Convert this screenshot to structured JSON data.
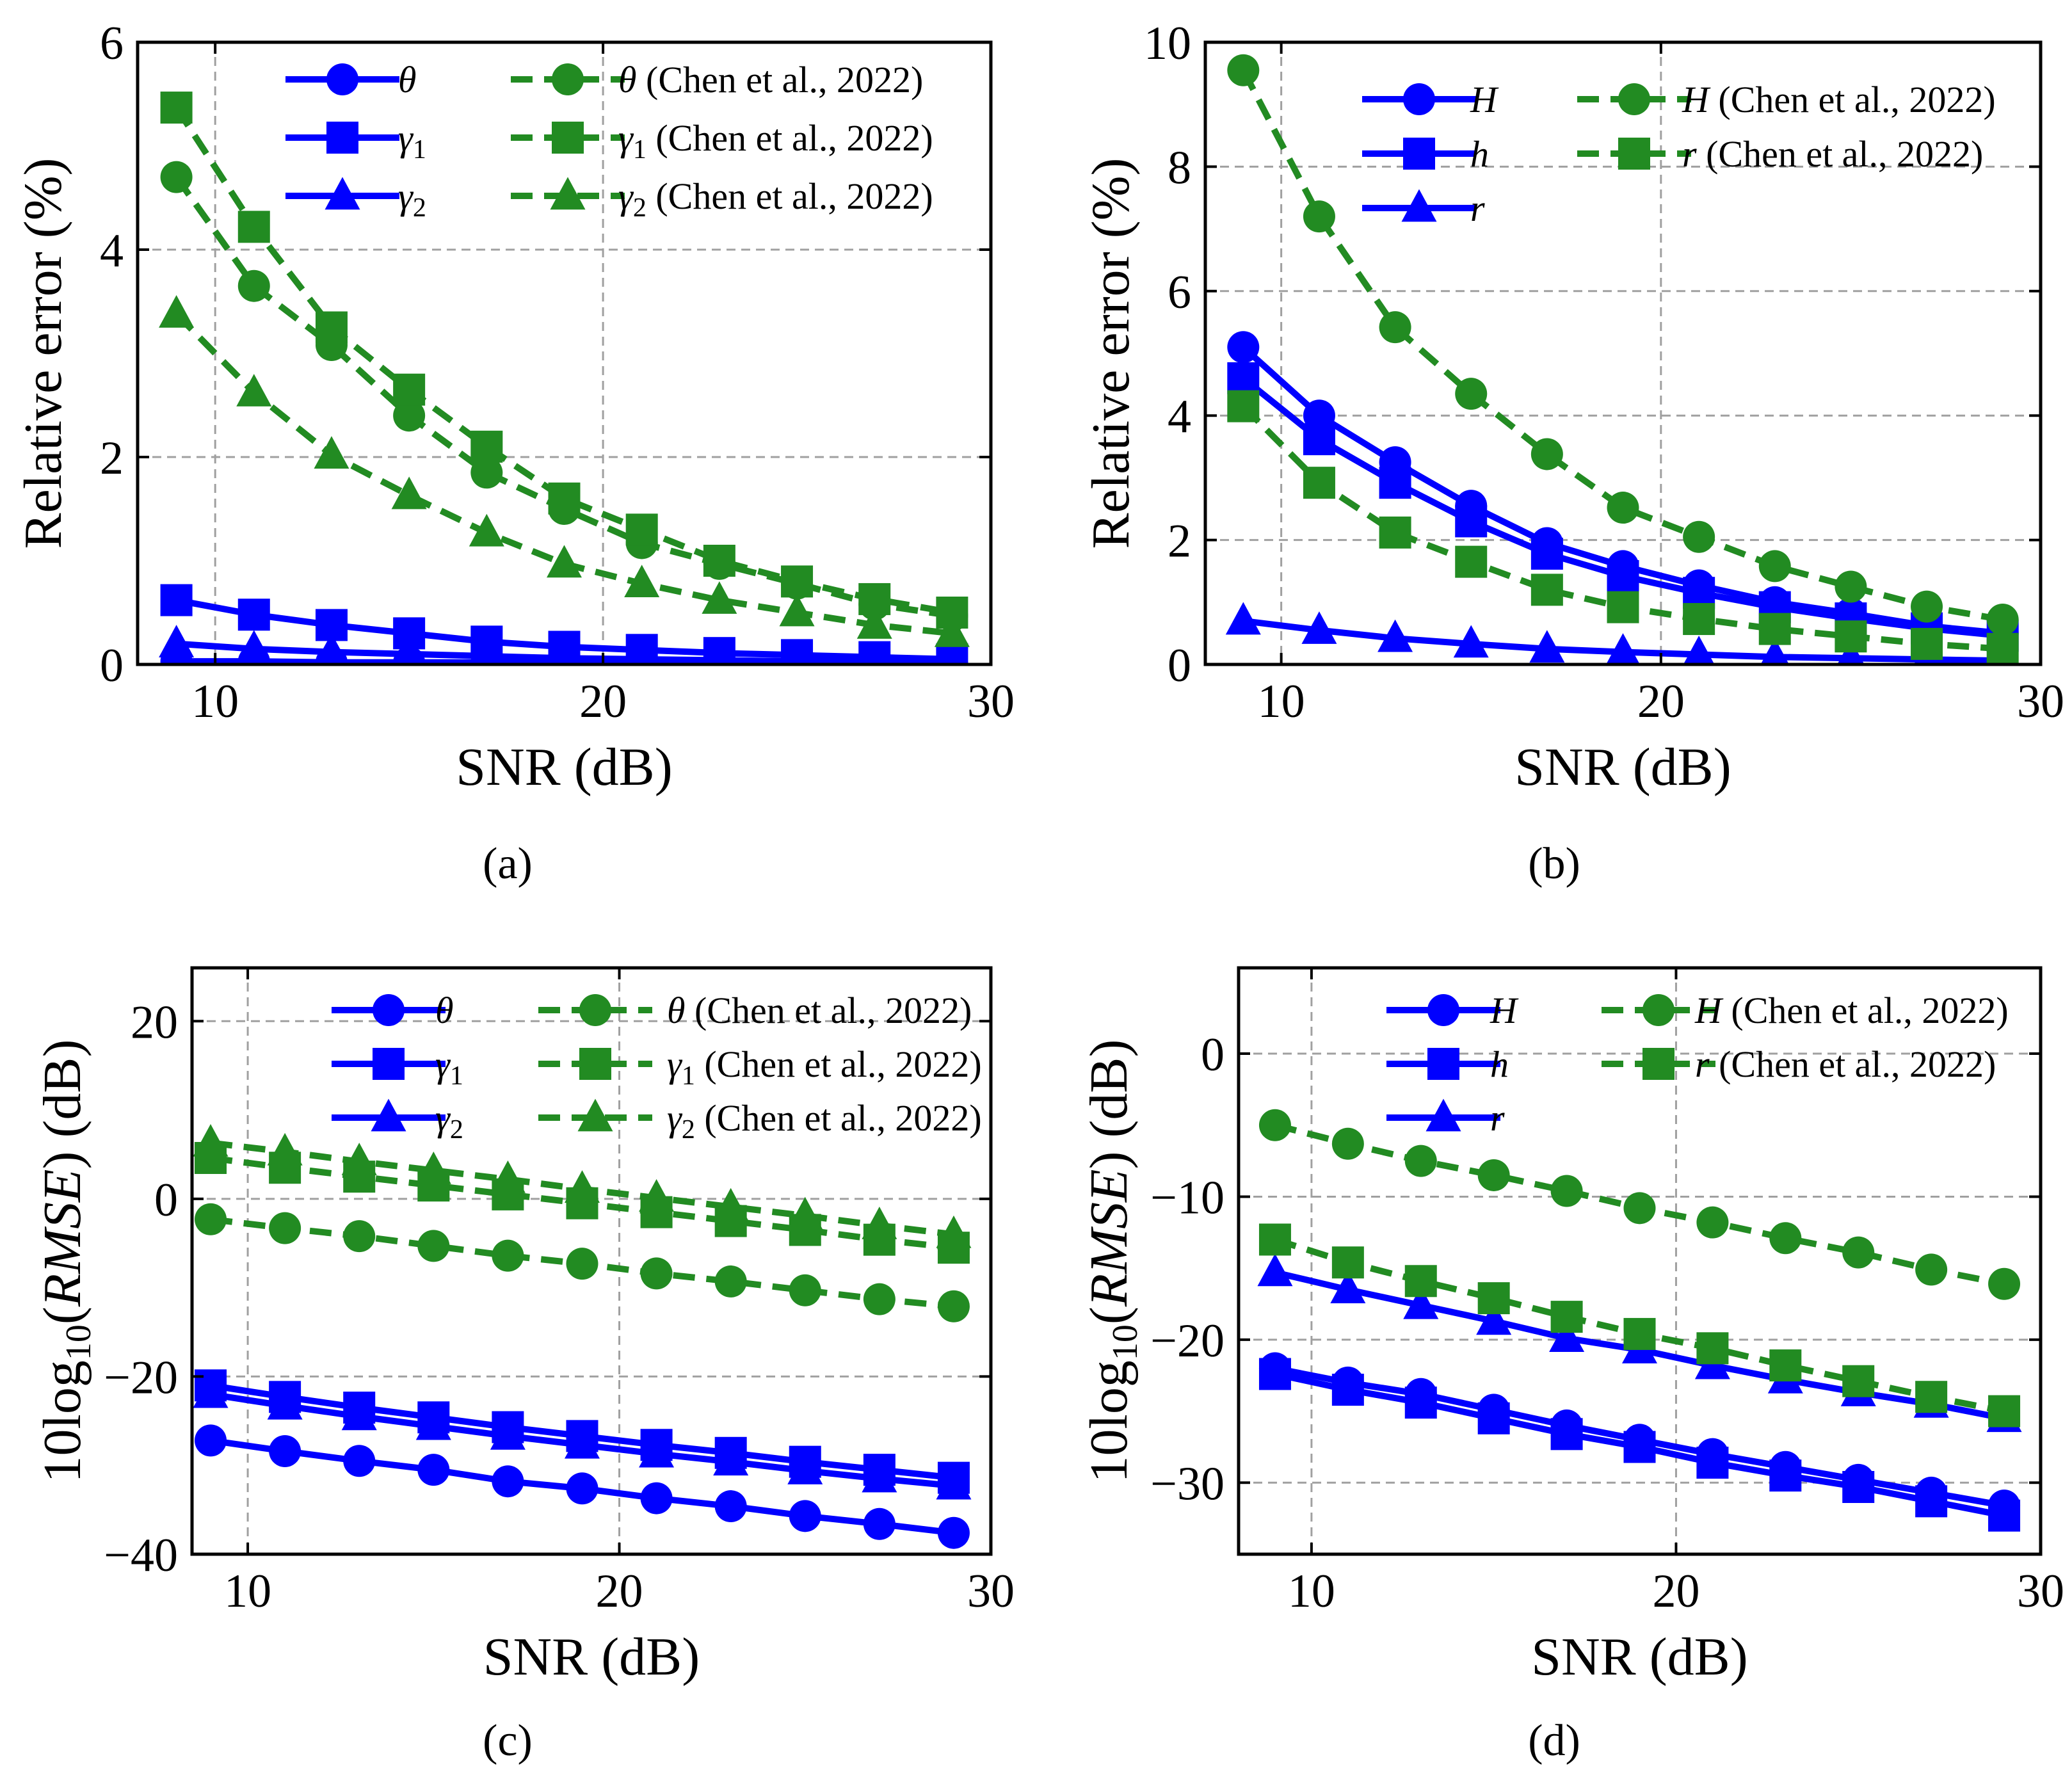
{
  "colors": {
    "ours": "#0000ff",
    "chen": "#228b22"
  },
  "chart_data": [
    {
      "type": "line",
      "caption": "(a)",
      "xlabel": "SNR (dB)",
      "ylabel": "Relative error (%)",
      "xlim": [
        8,
        30
      ],
      "ylim": [
        0,
        6
      ],
      "xticks": [
        10,
        20,
        30
      ],
      "xtick_labels": [
        "10",
        "20",
        "30"
      ],
      "yticks": [
        0,
        2,
        4,
        6
      ],
      "ytick_labels": [
        "0",
        "2",
        "4",
        "6"
      ],
      "legend_position": "upper-right",
      "x": [
        9,
        11,
        13,
        15,
        17,
        19,
        21,
        23,
        25,
        27,
        29
      ],
      "series": [
        {
          "name": "θ",
          "label_sym": "θ",
          "label_sub": "",
          "label_rest": "",
          "color": "ours",
          "marker": "circle",
          "dash": false,
          "values": [
            0.03,
            0.03,
            0.02,
            0.02,
            0.02,
            0.01,
            0.01,
            0.01,
            0.01,
            0.01,
            0.01
          ]
        },
        {
          "name": "γ1",
          "label_sym": "γ",
          "label_sub": "1",
          "label_rest": "",
          "color": "ours",
          "marker": "square",
          "dash": false,
          "values": [
            0.62,
            0.48,
            0.38,
            0.3,
            0.22,
            0.17,
            0.14,
            0.11,
            0.09,
            0.07,
            0.05
          ]
        },
        {
          "name": "γ2",
          "label_sym": "γ",
          "label_sub": "2",
          "label_rest": "",
          "color": "ours",
          "marker": "triangle",
          "dash": false,
          "values": [
            0.2,
            0.15,
            0.12,
            0.1,
            0.08,
            0.06,
            0.05,
            0.04,
            0.03,
            0.03,
            0.02
          ]
        },
        {
          "name": "θ (Chen et al., 2022)",
          "label_sym": "θ",
          "label_sub": "",
          "label_rest": " (Chen et al., 2022)",
          "color": "chen",
          "marker": "circle",
          "dash": true,
          "values": [
            4.7,
            3.65,
            3.08,
            2.4,
            1.85,
            1.5,
            1.17,
            0.97,
            0.78,
            0.58,
            0.47
          ]
        },
        {
          "name": "γ1 (Chen et al., 2022)",
          "label_sym": "γ",
          "label_sub": "1",
          "label_rest": " (Chen et al., 2022)",
          "color": "chen",
          "marker": "square",
          "dash": true,
          "values": [
            5.37,
            4.22,
            3.25,
            2.65,
            2.1,
            1.6,
            1.3,
            1.0,
            0.8,
            0.63,
            0.5
          ]
        },
        {
          "name": "γ2 (Chen et al., 2022)",
          "label_sym": "γ",
          "label_sub": "2",
          "label_rest": " (Chen et al., 2022)",
          "color": "chen",
          "marker": "triangle",
          "dash": true,
          "values": [
            3.38,
            2.62,
            2.02,
            1.63,
            1.27,
            0.97,
            0.78,
            0.62,
            0.5,
            0.38,
            0.3
          ]
        }
      ]
    },
    {
      "type": "line",
      "caption": "(b)",
      "xlabel": "SNR (dB)",
      "ylabel": "Relative error (%)",
      "xlim": [
        8,
        30
      ],
      "ylim": [
        0,
        10
      ],
      "xticks": [
        10,
        20,
        30
      ],
      "xtick_labels": [
        "10",
        "20",
        "30"
      ],
      "yticks": [
        0,
        2,
        4,
        6,
        8,
        10
      ],
      "ytick_labels": [
        "0",
        "2",
        "4",
        "6",
        "8",
        "10"
      ],
      "legend_position": "upper-right",
      "x": [
        9,
        11,
        13,
        15,
        17,
        19,
        21,
        23,
        25,
        27,
        29
      ],
      "series": [
        {
          "name": "H",
          "label_sym": "H",
          "label_sub": "",
          "label_rest": "",
          "color": "ours",
          "marker": "circle",
          "dash": false,
          "values": [
            5.1,
            4.0,
            3.25,
            2.55,
            1.95,
            1.58,
            1.27,
            1.0,
            0.82,
            0.62,
            0.5
          ]
        },
        {
          "name": "h",
          "label_sym": "h",
          "label_sub": "",
          "label_rest": "",
          "color": "ours",
          "marker": "square",
          "dash": false,
          "values": [
            4.6,
            3.62,
            2.92,
            2.3,
            1.78,
            1.42,
            1.15,
            0.92,
            0.74,
            0.58,
            0.46
          ]
        },
        {
          "name": "r",
          "label_sym": "r",
          "label_sub": "",
          "label_rest": "",
          "color": "ours",
          "marker": "triangle",
          "dash": false,
          "values": [
            0.7,
            0.55,
            0.42,
            0.33,
            0.25,
            0.2,
            0.16,
            0.12,
            0.1,
            0.08,
            0.06
          ]
        },
        {
          "name": "H (Chen et al., 2022)",
          "label_sym": "H",
          "label_sub": "",
          "label_rest": " (Chen et al., 2022)",
          "color": "chen",
          "marker": "circle",
          "dash": true,
          "values": [
            9.55,
            7.2,
            5.42,
            4.35,
            3.38,
            2.52,
            2.05,
            1.58,
            1.25,
            0.93,
            0.72
          ]
        },
        {
          "name": "r (Chen et al., 2022)",
          "label_sym": "r",
          "label_sub": "",
          "label_rest": " (Chen et al., 2022)",
          "color": "chen",
          "marker": "square",
          "dash": true,
          "values": [
            4.15,
            2.92,
            2.12,
            1.65,
            1.2,
            0.92,
            0.73,
            0.57,
            0.45,
            0.33,
            0.25
          ]
        }
      ]
    },
    {
      "type": "line",
      "caption": "(c)",
      "xlabel": "SNR (dB)",
      "ylabel_pre": "10log",
      "ylabel_sub": "10",
      "ylabel_mid": "(",
      "ylabel_it": "RMSE",
      "ylabel_post": ") (dB)",
      "xlim": [
        8.5,
        30
      ],
      "ylim": [
        -40,
        26
      ],
      "xticks": [
        10,
        20,
        30
      ],
      "xtick_labels": [
        "10",
        "20",
        "30"
      ],
      "yticks": [
        -40,
        -20,
        0,
        20
      ],
      "ytick_labels": [
        "−40",
        "−20",
        "0",
        "20"
      ],
      "legend_position": "upper-right",
      "x": [
        9,
        11,
        13,
        15,
        17,
        19,
        21,
        23,
        25,
        27,
        29
      ],
      "series": [
        {
          "name": "θ",
          "label_sym": "θ",
          "label_sub": "",
          "label_rest": "",
          "color": "ours",
          "marker": "circle",
          "dash": false,
          "values": [
            -27.2,
            -28.4,
            -29.5,
            -30.5,
            -31.8,
            -32.6,
            -33.7,
            -34.6,
            -35.7,
            -36.6,
            -37.6
          ]
        },
        {
          "name": "γ1",
          "label_sym": "γ",
          "label_sub": "1",
          "label_rest": "",
          "color": "ours",
          "marker": "square",
          "dash": false,
          "values": [
            -21.0,
            -22.3,
            -23.5,
            -24.6,
            -25.7,
            -26.7,
            -27.7,
            -28.6,
            -29.6,
            -30.5,
            -31.4
          ]
        },
        {
          "name": "γ2",
          "label_sym": "γ",
          "label_sub": "2",
          "label_rest": "",
          "color": "ours",
          "marker": "triangle",
          "dash": false,
          "values": [
            -22.0,
            -23.3,
            -24.5,
            -25.6,
            -26.7,
            -27.7,
            -28.7,
            -29.6,
            -30.6,
            -31.5,
            -32.3
          ]
        },
        {
          "name": "θ (Chen et al., 2022)",
          "label_sym": "θ",
          "label_sub": "",
          "label_rest": " (Chen et al., 2022)",
          "color": "chen",
          "marker": "circle",
          "dash": true,
          "values": [
            -2.3,
            -3.3,
            -4.2,
            -5.3,
            -6.4,
            -7.3,
            -8.4,
            -9.3,
            -10.3,
            -11.3,
            -12.1
          ]
        },
        {
          "name": "γ1 (Chen et al., 2022)",
          "label_sym": "γ",
          "label_sub": "1",
          "label_rest": " (Chen et al., 2022)",
          "color": "chen",
          "marker": "square",
          "dash": true,
          "values": [
            4.6,
            3.5,
            2.5,
            1.5,
            0.5,
            -0.5,
            -1.5,
            -2.5,
            -3.5,
            -4.6,
            -5.5
          ]
        },
        {
          "name": "γ2 (Chen et al., 2022)",
          "label_sym": "γ",
          "label_sub": "2",
          "label_rest": " (Chen et al., 2022)",
          "color": "chen",
          "marker": "triangle",
          "dash": true,
          "values": [
            6.3,
            5.3,
            4.2,
            3.2,
            2.2,
            1.1,
            0.1,
            -0.9,
            -1.9,
            -3.0,
            -4.0
          ]
        }
      ]
    },
    {
      "type": "line",
      "caption": "(d)",
      "xlabel": "SNR (dB)",
      "ylabel_pre": "10log",
      "ylabel_sub": "10",
      "ylabel_mid": "(",
      "ylabel_it": "RMSE",
      "ylabel_post": ") (dB)",
      "xlim": [
        8,
        30
      ],
      "ylim": [
        -35,
        6
      ],
      "xticks": [
        10,
        20,
        30
      ],
      "xtick_labels": [
        "10",
        "20",
        "30"
      ],
      "yticks": [
        -30,
        -20,
        -10,
        0
      ],
      "ytick_labels": [
        "−30",
        "−20",
        "−10",
        "0"
      ],
      "legend_position": "upper-right",
      "x": [
        9,
        11,
        13,
        15,
        17,
        19,
        21,
        23,
        25,
        27,
        29
      ],
      "series": [
        {
          "name": "H",
          "label_sym": "H",
          "label_sub": "",
          "label_rest": "",
          "color": "ours",
          "marker": "circle",
          "dash": false,
          "values": [
            -22.0,
            -23.0,
            -23.8,
            -24.9,
            -26.0,
            -27.0,
            -28.0,
            -28.9,
            -29.8,
            -30.7,
            -31.6
          ]
        },
        {
          "name": "h",
          "label_sym": "h",
          "label_sub": "",
          "label_rest": "",
          "color": "ours",
          "marker": "square",
          "dash": false,
          "values": [
            -22.4,
            -23.5,
            -24.4,
            -25.5,
            -26.6,
            -27.5,
            -28.6,
            -29.5,
            -30.3,
            -31.3,
            -32.3
          ]
        },
        {
          "name": "r",
          "label_sym": "r",
          "label_sub": "",
          "label_rest": "",
          "color": "ours",
          "marker": "triangle",
          "dash": false,
          "values": [
            -15.3,
            -16.5,
            -17.6,
            -18.7,
            -19.9,
            -20.7,
            -21.8,
            -22.8,
            -23.7,
            -24.5,
            -25.5
          ]
        },
        {
          "name": "H (Chen et al., 2022)",
          "label_sym": "H",
          "label_sub": "",
          "label_rest": " (Chen et al., 2022)",
          "color": "chen",
          "marker": "circle",
          "dash": true,
          "values": [
            -5.0,
            -6.3,
            -7.5,
            -8.5,
            -9.6,
            -10.8,
            -11.8,
            -12.9,
            -13.9,
            -15.1,
            -16.1
          ]
        },
        {
          "name": "r (Chen et al., 2022)",
          "label_sym": "r",
          "label_sub": "",
          "label_rest": " (Chen et al., 2022)",
          "color": "chen",
          "marker": "square",
          "dash": true,
          "values": [
            -13.0,
            -14.6,
            -15.9,
            -17.1,
            -18.4,
            -19.6,
            -20.6,
            -21.8,
            -22.9,
            -24.0,
            -25.0
          ]
        }
      ]
    }
  ]
}
